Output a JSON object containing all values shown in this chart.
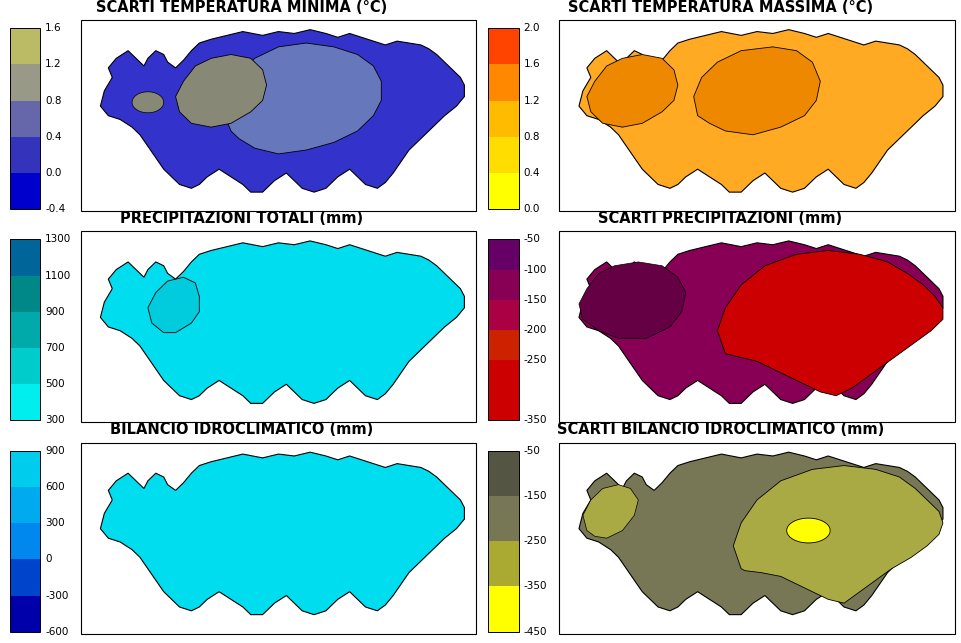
{
  "panels": [
    {
      "title": "SCARTI TEMPERATURA MINIMA (°C)",
      "colorbar_ticks": [
        "-0.4",
        "0.0",
        "0.4",
        "0.8",
        "1.2",
        "1.6"
      ],
      "colorbar_values": [
        -0.4,
        0.0,
        0.4,
        0.8,
        1.2,
        1.6
      ],
      "cbar_colors": [
        "#0000cc",
        "#3333bb",
        "#6666aa",
        "#999988",
        "#bbbb66",
        "#dddd44"
      ],
      "main_map_color": "#3344cc",
      "sub_colors": [
        "#6677bb",
        "#999988",
        "#888877"
      ]
    },
    {
      "title": "SCARTI TEMPERATURA MASSIMA (°C)",
      "colorbar_ticks": [
        "0.0",
        "0.4",
        "0.8",
        "1.2",
        "1.6",
        "2.0"
      ],
      "colorbar_values": [
        0.0,
        0.4,
        0.8,
        1.2,
        1.6,
        2.0
      ],
      "cbar_colors": [
        "#ffff00",
        "#ffdd00",
        "#ffbb00",
        "#ff8800",
        "#ff4400",
        "#cc0000"
      ],
      "main_map_color": "#ffaa22",
      "sub_colors": [
        "#ff8800",
        "#ffcc44",
        "#ff9900"
      ]
    },
    {
      "title": "PRECIPITAZIONI TOTALI (mm)",
      "colorbar_ticks": [
        "300",
        "500",
        "700",
        "900",
        "1100",
        "1300"
      ],
      "colorbar_values": [
        300,
        500,
        700,
        900,
        1100,
        1300
      ],
      "cbar_colors": [
        "#00eeee",
        "#00cccc",
        "#00aaaa",
        "#008888",
        "#006699",
        "#004488"
      ],
      "main_map_color": "#00ddee",
      "sub_colors": [
        "#00ccdd"
      ]
    },
    {
      "title": "SCARTI PRECIPITAZIONI (mm)",
      "colorbar_ticks": [
        "-350",
        "-250",
        "-200",
        "-150",
        "-100",
        "-50"
      ],
      "colorbar_values": [
        -350,
        -250,
        -200,
        -150,
        -100,
        -50
      ],
      "cbar_colors": [
        "#cc0000",
        "#cc2200",
        "#aa0044",
        "#880055",
        "#660066",
        "#440055"
      ],
      "main_map_color": "#880055",
      "sub_colors": [
        "#cc0000"
      ]
    },
    {
      "title": "BILANCIO IDROCLIMATICO (mm)",
      "colorbar_ticks": [
        "-600",
        "-300",
        "0",
        "300",
        "600",
        "900"
      ],
      "colorbar_values": [
        -600,
        -300,
        0,
        300,
        600,
        900
      ],
      "cbar_colors": [
        "#0000aa",
        "#0044cc",
        "#0088ee",
        "#00aaee",
        "#00ccee",
        "#00eeee"
      ],
      "main_map_color": "#00ddee",
      "sub_colors": []
    },
    {
      "title": "SCARTI BILANCIO IDROCLIMATICO (mm)",
      "colorbar_ticks": [
        "-450",
        "-350",
        "-250",
        "-150",
        "-50"
      ],
      "colorbar_values": [
        -450,
        -350,
        -250,
        -150,
        -50
      ],
      "cbar_colors": [
        "#ffff00",
        "#aaaa33",
        "#777755",
        "#555544",
        "#333344"
      ],
      "main_map_color": "#777755",
      "sub_colors": [
        "#aaaa44",
        "#aaaa44",
        "#ffff00"
      ]
    }
  ],
  "background_color": "#ffffff"
}
